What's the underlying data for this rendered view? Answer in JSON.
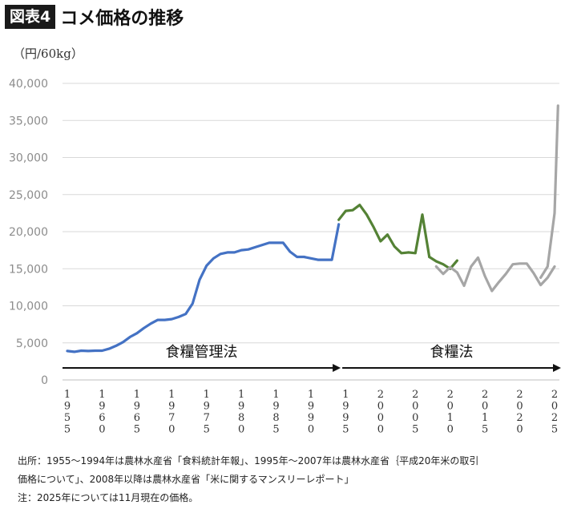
{
  "header": {
    "badge": "図表4",
    "title": "コメ価格の推移"
  },
  "chart_data": {
    "type": "line",
    "ylabel": "（円/60kg）",
    "ylim": [
      0,
      40000
    ],
    "yticks": [
      0,
      5000,
      10000,
      15000,
      20000,
      25000,
      30000,
      35000,
      40000
    ],
    "ytick_labels": [
      "0",
      "5,000",
      "10,000",
      "15,000",
      "20,000",
      "25,000",
      "30,000",
      "35,000",
      "40,000"
    ],
    "xlim": [
      1955,
      2025
    ],
    "xticks": [
      1955,
      1960,
      1965,
      1970,
      1975,
      1980,
      1985,
      1990,
      1995,
      2000,
      2005,
      2010,
      2015,
      2020,
      2025
    ],
    "grid": "horizontal",
    "periods": [
      {
        "label": "食糧管理法",
        "from": 1955,
        "to": 1994.5
      },
      {
        "label": "食糧法",
        "from": 1994.5,
        "to": 2025
      }
    ],
    "series": [
      {
        "color": "#4472c4",
        "x": [
          1955,
          1956,
          1957,
          1958,
          1959,
          1960,
          1961,
          1962,
          1963,
          1964,
          1965,
          1966,
          1967,
          1968,
          1969,
          1970,
          1971,
          1972,
          1973,
          1974,
          1975,
          1976,
          1977,
          1978,
          1979,
          1980,
          1981,
          1982,
          1983,
          1984,
          1985,
          1986,
          1987,
          1988,
          1989,
          1990,
          1991,
          1992,
          1993,
          1994
        ],
        "values": [
          3900,
          3800,
          3950,
          3900,
          3950,
          3950,
          4200,
          4600,
          5100,
          5800,
          6300,
          7000,
          7600,
          8100,
          8100,
          8200,
          8500,
          8900,
          10300,
          13500,
          15400,
          16400,
          17000,
          17200,
          17200,
          17500,
          17600,
          17900,
          18200,
          18500,
          18500,
          18500,
          17300,
          16600,
          16600,
          16400,
          16200,
          16200,
          16200,
          21000
        ]
      },
      {
        "color": "#548235",
        "x": [
          1994,
          1995,
          1996,
          1997,
          1998,
          1999,
          2000,
          2001,
          2002,
          2003,
          2004,
          2005,
          2006,
          2007
        ],
        "values": [
          21600,
          22800,
          22900,
          23600,
          22300,
          20600,
          18700,
          19600,
          18000,
          17100,
          17200,
          17100,
          22300,
          16600
        ]
      },
      {
        "color": "#548235",
        "x": [
          2007,
          2008,
          2009,
          2010,
          2011
        ],
        "values": [
          16600,
          16000,
          15600,
          15000,
          16100
        ]
      },
      {
        "color": "#a6a6a6",
        "x": [
          2008,
          2009,
          2010,
          2011,
          2012,
          2013,
          2014,
          2015,
          2016,
          2017,
          2018,
          2019,
          2020,
          2021,
          2022,
          2023,
          2024,
          2025
        ],
        "values": [
          15300,
          14300,
          15200,
          14500,
          12700,
          15300,
          16500,
          14000,
          12000,
          13200,
          14300,
          15600,
          15700,
          15700,
          14400,
          12800,
          13800,
          15300
        ]
      },
      {
        "color": "#a6a6a6",
        "x": [
          2023,
          2024,
          2025,
          2025.5
        ],
        "values": [
          13800,
          15300,
          22500,
          37000
        ]
      }
    ]
  },
  "notes": {
    "line1": "出所：1955～1994年は農林水産省「食料統計年報」、1995年～2007年は農林水産省｛平成20年米の取引",
    "line2": "価格について」、2008年以降は農林水産省「米に関するマンスリーレポート」",
    "line3": "注：2025年については11月現在の価格。"
  }
}
